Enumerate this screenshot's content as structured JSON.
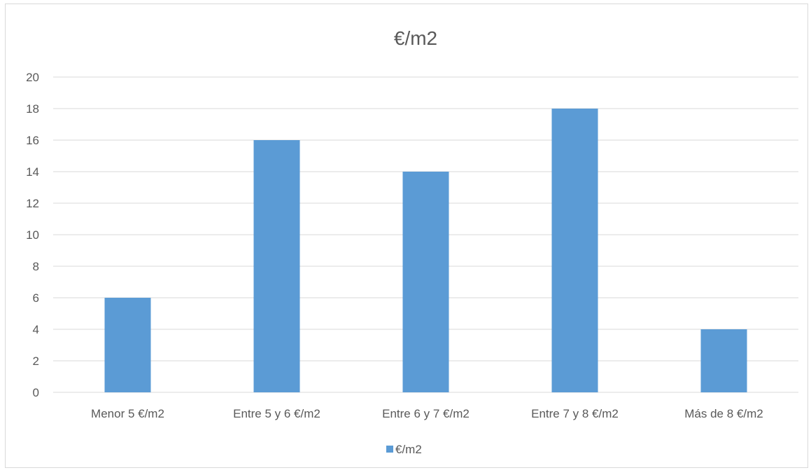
{
  "chart_data": {
    "type": "bar",
    "title": "€/m2",
    "xlabel": "",
    "ylabel": "",
    "categories": [
      "Menor 5 €/m2",
      "Entre 5 y 6 €/m2",
      "Entre 6 y 7 €/m2",
      "Entre 7 y 8 €/m2",
      "Más de 8 €/m2"
    ],
    "series": [
      {
        "name": "€/m2",
        "values": [
          6,
          16,
          14,
          18,
          4
        ],
        "color": "#5b9bd5"
      }
    ],
    "ylim": [
      0,
      20
    ],
    "yticks": [
      "0",
      "2",
      "4",
      "6",
      "8",
      "10",
      "12",
      "14",
      "16",
      "18",
      "20"
    ],
    "grid": true,
    "legend_position": "bottom"
  }
}
